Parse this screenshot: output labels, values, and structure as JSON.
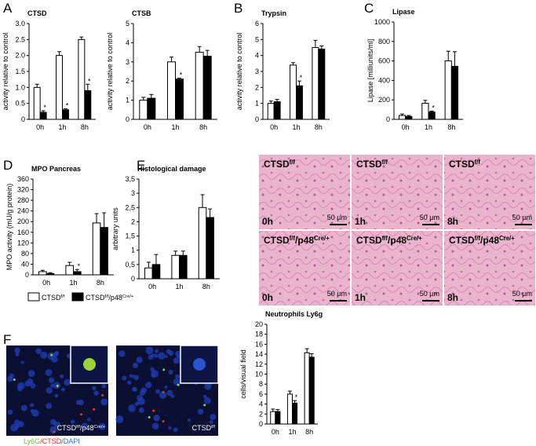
{
  "panels": [
    "A",
    "B",
    "C",
    "D",
    "E",
    "F"
  ],
  "legend": [
    {
      "parts": [
        "CTSD",
        "f/f"
      ],
      "color": "#ffffff"
    },
    {
      "parts": [
        "CTSD",
        "f/f",
        "/p48",
        "Cre/+"
      ],
      "color": "#000000"
    }
  ],
  "histology": [
    {
      "parts": [
        "CTSD",
        "f/f"
      ],
      "time": "0h",
      "scale": "50 µm"
    },
    {
      "parts": [
        "CTSD",
        "f/f"
      ],
      "time": "1h",
      "scale": "50 µm"
    },
    {
      "parts": [
        "CTSD",
        "f/f"
      ],
      "time": "8h",
      "scale": "50 µm"
    },
    {
      "parts": [
        "CTSD",
        "f/f",
        "/p48",
        "Cre/+"
      ],
      "time": "0h",
      "scale": "50 µm"
    },
    {
      "parts": [
        "CTSD",
        "f/f",
        "/p48",
        "Cre/+"
      ],
      "time": "1h",
      "scale": "50 µm"
    },
    {
      "parts": [
        "CTSD",
        "f/f",
        "/p48",
        "Cre/+"
      ],
      "time": "8h",
      "scale": "50 µm"
    }
  ],
  "fluorescence": {
    "images": [
      {
        "parts": [
          "CTSD",
          "f/f",
          "/p48",
          "Cre/+"
        ]
      },
      {
        "parts": [
          "CTSD",
          "f/f"
        ]
      }
    ],
    "caption": [
      {
        "text": "Ly6G",
        "color": "#6cc24a"
      },
      {
        "text": "/CTSD",
        "color": "#e0302a"
      },
      {
        "text": "/DAPI",
        "color": "#2f6fd0"
      }
    ]
  },
  "chart_data": [
    {
      "type": "bar",
      "title": "CTSD",
      "y_label": "activity relative to control",
      "categories": [
        "0h",
        "1h",
        "8h"
      ],
      "series": [
        {
          "color": "#ffffff",
          "values": [
            1.0,
            2.0,
            2.5
          ],
          "errors": [
            0.1,
            0.12,
            0.08
          ]
        },
        {
          "color": "#000000",
          "values": [
            0.22,
            0.3,
            0.9
          ],
          "errors": [
            0.05,
            0.03,
            0.2
          ],
          "significance": [
            "*",
            "*",
            "*"
          ]
        }
      ],
      "ylim": [
        0,
        3
      ],
      "yticks": [
        0,
        0.5,
        {
          "value": 1,
          "label": "1.0"
        },
        1.5,
        {
          "value": 2,
          "label": "2.0"
        },
        2.5,
        {
          "value": 3,
          "label": "3.0"
        }
      ]
    },
    {
      "type": "bar",
      "title": "CTSB",
      "y_label": "activity relative to control",
      "categories": [
        "0h",
        "1h",
        "8h"
      ],
      "series": [
        {
          "color": "#ffffff",
          "values": [
            1.0,
            3.0,
            3.5
          ],
          "errors": [
            0.15,
            0.25,
            0.3
          ]
        },
        {
          "color": "#000000",
          "values": [
            1.1,
            2.1,
            3.3
          ],
          "errors": [
            0.2,
            0.05,
            0.3
          ],
          "significance": [
            null,
            "*",
            null
          ]
        }
      ],
      "ylim": [
        0,
        5
      ],
      "yticks": [
        0,
        1,
        2,
        3,
        4,
        5
      ]
    },
    {
      "type": "bar",
      "title": "Trypsin",
      "y_label": "activity relative to control",
      "categories": [
        "0h",
        "1h",
        "8h"
      ],
      "series": [
        {
          "color": "#ffffff",
          "values": [
            1.0,
            3.4,
            4.5
          ],
          "errors": [
            0.15,
            0.15,
            0.45
          ]
        },
        {
          "color": "#000000",
          "values": [
            1.1,
            2.1,
            4.4
          ],
          "errors": [
            0.15,
            0.3,
            0.2
          ],
          "significance": [
            null,
            "*",
            null
          ]
        }
      ],
      "ylim": [
        0,
        6
      ],
      "yticks": [
        0,
        1,
        2,
        3,
        4,
        5,
        6
      ]
    },
    {
      "type": "bar",
      "title": "Lipase",
      "y_label": "Lipase [milliunits/ml]",
      "categories": [
        "0h",
        "1h",
        "8h"
      ],
      "series": [
        {
          "color": "#ffffff",
          "values": [
            40,
            165,
            600
          ],
          "errors": [
            15,
            30,
            100
          ]
        },
        {
          "color": "#000000",
          "values": [
            30,
            75,
            545
          ],
          "errors": [
            10,
            10,
            150
          ],
          "significance": [
            null,
            "*",
            null
          ]
        }
      ],
      "ylim": [
        0,
        1000
      ],
      "yticks": [
        0,
        200,
        400,
        600,
        800,
        1000
      ]
    },
    {
      "type": "bar",
      "title": "MPO Pancreas",
      "y_label": "MPO activity (mU/g protein)",
      "categories": [
        "0h",
        "1h",
        "8h"
      ],
      "series": [
        {
          "color": "#ffffff",
          "values": [
            12,
            35,
            195
          ],
          "errors": [
            5,
            12,
            35
          ]
        },
        {
          "color": "#000000",
          "values": [
            5,
            12,
            178
          ],
          "errors": [
            3,
            8,
            55
          ],
          "significance": [
            null,
            "*",
            null
          ]
        }
      ],
      "ylim": [
        0,
        360
      ],
      "yticks": [
        0,
        40,
        80,
        120,
        160,
        200,
        240,
        280,
        320,
        360
      ]
    },
    {
      "type": "bar",
      "title": "Histological damage",
      "y_label": "arbitrary units",
      "categories": [
        "0h",
        "1h",
        "8h"
      ],
      "series": [
        {
          "color": "#ffffff",
          "values": [
            0.38,
            0.82,
            2.5
          ],
          "errors": [
            0.2,
            0.15,
            0.45
          ]
        },
        {
          "color": "#000000",
          "values": [
            0.5,
            0.82,
            2.15
          ],
          "errors": [
            0.35,
            0.15,
            0.3
          ]
        }
      ],
      "ylim": [
        0,
        3.5
      ],
      "yticks": [
        0,
        {
          "value": 0.5,
          "label": "0,5"
        },
        1,
        {
          "value": 1.5,
          "label": "1,5"
        },
        2,
        {
          "value": 2.5,
          "label": "2,5"
        },
        3,
        {
          "value": 3.5,
          "label": "3,5"
        }
      ]
    },
    {
      "type": "bar",
      "title": "Neutrophils Ly6g",
      "y_label": "cells/visual field",
      "categories": [
        "0h",
        "1h",
        "8h"
      ],
      "series": [
        {
          "color": "#ffffff",
          "values": [
            2.5,
            6,
            14.3
          ],
          "errors": [
            0.5,
            0.6,
            0.8
          ]
        },
        {
          "color": "#000000",
          "values": [
            2.5,
            4.2,
            13.4
          ],
          "errors": [
            0.4,
            0.5,
            0.7
          ],
          "significance": [
            null,
            "*",
            null
          ]
        }
      ],
      "ylim": [
        0,
        20
      ],
      "yticks": [
        0,
        2,
        4,
        6,
        8,
        10,
        12,
        14,
        16,
        18,
        20
      ]
    }
  ]
}
